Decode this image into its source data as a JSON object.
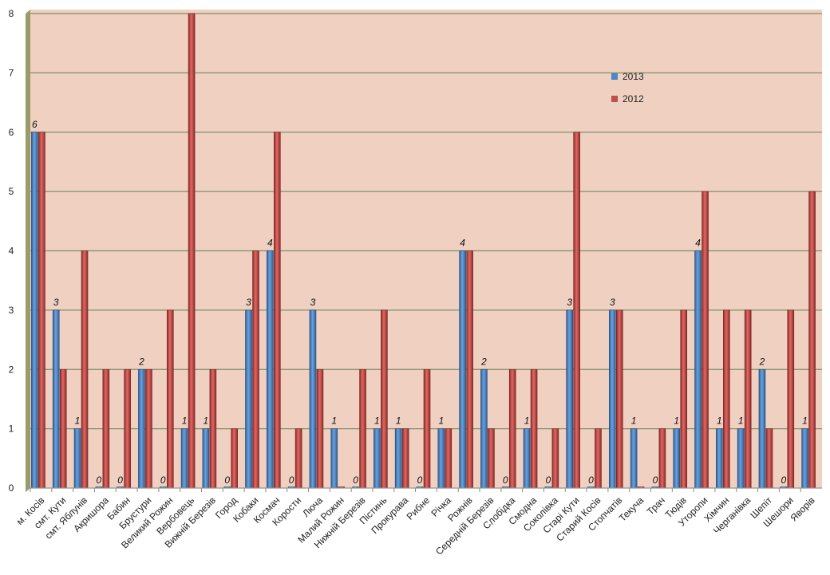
{
  "chart_data": {
    "type": "bar",
    "categories": [
      "м. Косів",
      "смт. Кути",
      "смт. Яблунів",
      "Акришора",
      "Бабин",
      "Брустури",
      "Великий Рожин",
      "Вербовець",
      "Вижній Березів",
      "Город",
      "Кобаки",
      "Космач",
      "Корости",
      "Люча",
      "Малий Рожин",
      "Нижній Березів",
      "Пістинь",
      "Прокурава",
      "Рибне",
      "Річка",
      "Рожнів",
      "Середній Березів",
      "Слобідка",
      "Смодна",
      "Соколівка",
      "Старі Кути",
      "Старий Косів",
      "Стопчатів",
      "Текуча",
      "Трач",
      "Тюдів",
      "Уторопи",
      "Хімчин",
      "Черганівка",
      "Шепіт",
      "Шешори",
      "Яворів"
    ],
    "series": [
      {
        "name": "2013",
        "color": "#4a86c8",
        "values": [
          6,
          3,
          1,
          0,
          0,
          2,
          0,
          1,
          1,
          0,
          3,
          4,
          0,
          3,
          1,
          0,
          1,
          1,
          0,
          1,
          4,
          2,
          0,
          1,
          0,
          3,
          0,
          3,
          1,
          0,
          1,
          4,
          1,
          1,
          2,
          0,
          1
        ],
        "data_labels": true
      },
      {
        "name": "2012",
        "color": "#c0504d",
        "values": [
          6,
          2,
          4,
          2,
          2,
          2,
          3,
          8,
          2,
          1,
          4,
          6,
          1,
          2,
          0,
          2,
          3,
          1,
          2,
          1,
          4,
          1,
          2,
          2,
          1,
          6,
          1,
          3,
          0,
          1,
          3,
          5,
          3,
          3,
          1,
          3,
          5
        ],
        "data_labels": false
      }
    ],
    "ylim": [
      0,
      8
    ],
    "yticks": [
      0,
      1,
      2,
      3,
      4,
      5,
      6,
      7,
      8
    ],
    "grid": true,
    "legend": "top-right",
    "background_color": "#f0d0c0"
  }
}
